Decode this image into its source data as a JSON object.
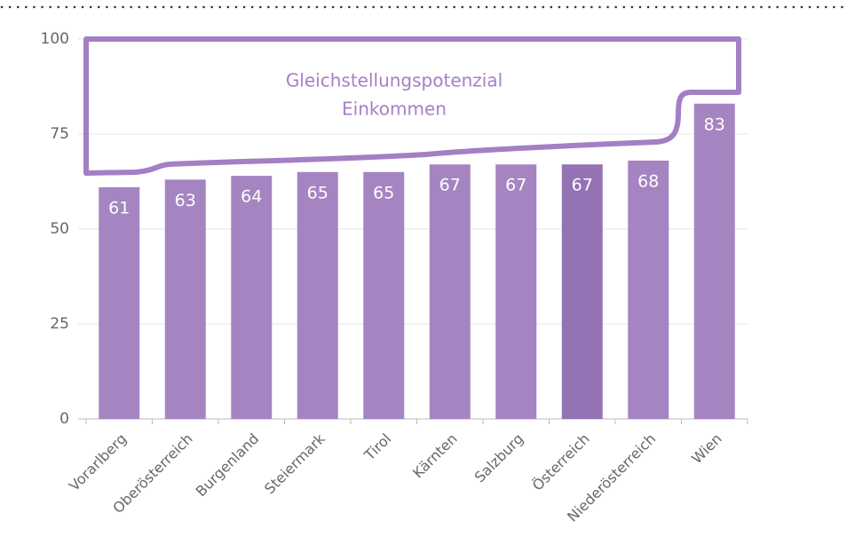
{
  "chart_data": {
    "type": "bar",
    "annotation": [
      "Gleichstellungspotenzial",
      "Einkommen"
    ],
    "categories": [
      "Vorarlberg",
      "Oberösterreich",
      "Burgenland",
      "Steiermark",
      "Tirol",
      "Kärnten",
      "Salzburg",
      "Österreich",
      "Niederösterreich",
      "Wien"
    ],
    "values": [
      61,
      63,
      64,
      65,
      65,
      67,
      67,
      67,
      68,
      83
    ],
    "colors": [
      "#a585c1",
      "#a585c1",
      "#a585c1",
      "#a585c1",
      "#a585c1",
      "#a585c1",
      "#a585c1",
      "#9373b3",
      "#a585c1",
      "#a585c1"
    ],
    "ylim": [
      0,
      100
    ],
    "yticks": [
      0,
      25,
      50,
      75,
      100
    ],
    "grid": true
  }
}
